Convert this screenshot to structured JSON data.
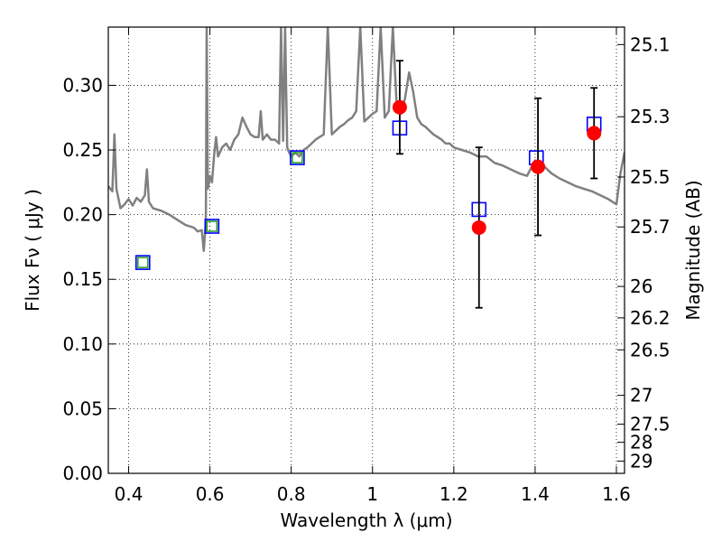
{
  "chart_data": {
    "type": "scatter",
    "title": "",
    "xlabel": "Wavelength  λ (μm)",
    "ylabel": "Flux  Fν  ( μJy )",
    "y2label": "Magnitude (AB)",
    "xlim": [
      0.35,
      1.62
    ],
    "ylim": [
      0.0,
      0.345
    ],
    "grid": true,
    "grid_style": "dotted",
    "xticks": [
      {
        "value": 0.4,
        "label": "0.4"
      },
      {
        "value": 0.6,
        "label": "0.6"
      },
      {
        "value": 0.8,
        "label": "0.8"
      },
      {
        "value": 1.0,
        "label": "1"
      },
      {
        "value": 1.2,
        "label": "1.2"
      },
      {
        "value": 1.4,
        "label": "1.4"
      },
      {
        "value": 1.6,
        "label": "1.6"
      }
    ],
    "yticks": [
      {
        "value": 0.0,
        "label": "0.00"
      },
      {
        "value": 0.05,
        "label": "0.05"
      },
      {
        "value": 0.1,
        "label": "0.10"
      },
      {
        "value": 0.15,
        "label": "0.15"
      },
      {
        "value": 0.2,
        "label": "0.20"
      },
      {
        "value": 0.25,
        "label": "0.25"
      },
      {
        "value": 0.3,
        "label": "0.30"
      }
    ],
    "magnitude_ticks": [
      {
        "flux": 0.3315,
        "label": "25.1"
      },
      {
        "flux": 0.2757,
        "label": "25.3"
      },
      {
        "flux": 0.2291,
        "label": "25.5"
      },
      {
        "flux": 0.1905,
        "label": "25.7"
      },
      {
        "flux": 0.1445,
        "label": "26"
      },
      {
        "flux": 0.1202,
        "label": "26.2"
      },
      {
        "flux": 0.0955,
        "label": "26.5"
      },
      {
        "flux": 0.0603,
        "label": "27"
      },
      {
        "flux": 0.038,
        "label": "27.5"
      },
      {
        "flux": 0.024,
        "label": "28"
      },
      {
        "flux": 0.0095,
        "label": "29"
      }
    ],
    "series": [
      {
        "style": "line",
        "color": "#808080",
        "x": [
          0.35,
          0.36,
          0.365,
          0.37,
          0.38,
          0.39,
          0.4,
          0.41,
          0.42,
          0.43,
          0.44,
          0.445,
          0.45,
          0.46,
          0.47,
          0.48,
          0.5,
          0.52,
          0.54,
          0.56,
          0.57,
          0.58,
          0.585,
          0.59,
          0.592,
          0.595,
          0.6,
          0.605,
          0.61,
          0.615,
          0.62,
          0.63,
          0.64,
          0.65,
          0.66,
          0.67,
          0.68,
          0.69,
          0.7,
          0.71,
          0.72,
          0.725,
          0.73,
          0.74,
          0.75,
          0.76,
          0.77,
          0.775,
          0.78,
          0.785,
          0.79,
          0.795,
          0.8,
          0.81,
          0.82,
          0.83,
          0.84,
          0.85,
          0.86,
          0.87,
          0.88,
          0.89,
          0.9,
          0.91,
          0.92,
          0.93,
          0.94,
          0.95,
          0.96,
          0.97,
          0.98,
          0.99,
          1.0,
          1.01,
          1.02,
          1.03,
          1.04,
          1.05,
          1.06,
          1.07,
          1.08,
          1.09,
          1.1,
          1.11,
          1.12,
          1.13,
          1.14,
          1.15,
          1.16,
          1.17,
          1.18,
          1.19,
          1.2,
          1.22,
          1.24,
          1.26,
          1.28,
          1.3,
          1.32,
          1.34,
          1.36,
          1.38,
          1.4,
          1.42,
          1.44,
          1.46,
          1.48,
          1.5,
          1.52,
          1.54,
          1.56,
          1.58,
          1.6,
          1.61,
          1.62
        ],
        "y": [
          0.222,
          0.218,
          0.262,
          0.22,
          0.205,
          0.208,
          0.212,
          0.207,
          0.213,
          0.21,
          0.215,
          0.235,
          0.21,
          0.205,
          0.204,
          0.203,
          0.2,
          0.196,
          0.192,
          0.19,
          0.187,
          0.188,
          0.172,
          0.195,
          0.345,
          0.22,
          0.23,
          0.225,
          0.245,
          0.26,
          0.245,
          0.252,
          0.255,
          0.25,
          0.258,
          0.262,
          0.275,
          0.268,
          0.262,
          0.26,
          0.26,
          0.28,
          0.258,
          0.262,
          0.258,
          0.258,
          0.255,
          0.345,
          0.257,
          0.345,
          0.252,
          0.248,
          0.245,
          0.248,
          0.245,
          0.25,
          0.252,
          0.255,
          0.258,
          0.26,
          0.262,
          0.345,
          0.262,
          0.265,
          0.268,
          0.27,
          0.273,
          0.275,
          0.28,
          0.345,
          0.272,
          0.275,
          0.278,
          0.28,
          0.345,
          0.275,
          0.28,
          0.345,
          0.28,
          0.278,
          0.29,
          0.31,
          0.295,
          0.275,
          0.27,
          0.268,
          0.265,
          0.262,
          0.26,
          0.258,
          0.255,
          0.255,
          0.252,
          0.25,
          0.248,
          0.245,
          0.245,
          0.24,
          0.238,
          0.235,
          0.232,
          0.23,
          0.242,
          0.238,
          0.232,
          0.228,
          0.225,
          0.222,
          0.22,
          0.218,
          0.215,
          0.212,
          0.208,
          0.232,
          0.248
        ]
      },
      {
        "style": "open-square",
        "color": "#0000ff",
        "x": [
          0.435,
          0.605,
          0.815,
          1.067,
          1.262,
          1.403,
          1.545
        ],
        "y": [
          0.163,
          0.191,
          0.244,
          0.267,
          0.204,
          0.244,
          0.27
        ]
      },
      {
        "style": "open-square",
        "color": "#2ca02c",
        "x": [
          0.435,
          0.605,
          0.815
        ],
        "y": [
          0.163,
          0.191,
          0.244
        ]
      },
      {
        "style": "point-errorbar",
        "color": "#ff0000",
        "x": [
          1.067,
          1.262,
          1.407,
          1.545
        ],
        "y": [
          0.283,
          0.19,
          0.237,
          0.263
        ],
        "yerr": [
          0.036,
          0.062,
          0.053,
          0.035
        ]
      }
    ]
  }
}
